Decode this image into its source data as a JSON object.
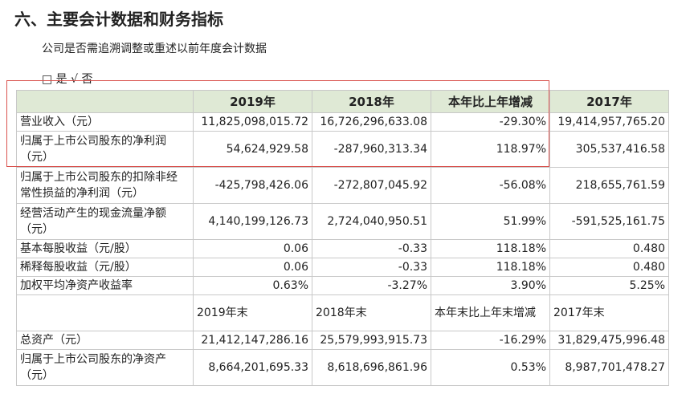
{
  "header": {
    "title": "六、主要会计数据和财务指标"
  },
  "subtitle": "公司是否需追溯调整或重述以前年度会计数据",
  "option": "□ 是 √ 否",
  "table": {
    "header": [
      "",
      "2019年",
      "2018年",
      "本年比上年增减",
      "2017年"
    ],
    "rows": [
      [
        "营业收入（元）",
        "11,825,098,015.72",
        "16,726,296,633.08",
        "-29.30%",
        "19,414,957,765.20"
      ],
      [
        "归属于上市公司股东的净利润（元）",
        "54,624,929.58",
        "-287,960,313.34",
        "118.97%",
        "305,537,416.58"
      ],
      [
        "归属于上市公司股东的扣除非经 常性损益的净利润（元）",
        "-425,798,426.06",
        "-272,807,045.92",
        "-56.08%",
        "218,655,761.59"
      ],
      [
        "经营活动产生的现金流量净额（元）",
        "4,140,199,126.73",
        "2,724,040,950.51",
        "51.99%",
        "-591,525,161.75"
      ],
      [
        "基本每股收益（元/股）",
        "0.06",
        "-0.33",
        "118.18%",
        "0.480"
      ],
      [
        "稀释每股收益（元/股）",
        "0.06",
        "-0.33",
        "118.18%",
        "0.480"
      ],
      [
        "加权平均净资产收益率",
        "0.63%",
        "-3.27%",
        "3.90%",
        "5.25%"
      ]
    ],
    "header2": [
      "",
      "2019年末",
      "2018年末",
      "本年末比上年末增减",
      "2017年末"
    ],
    "rows2": [
      [
        "总资产（元）",
        "21,412,147,286.16",
        "25,579,993,915.73",
        "-16.29%",
        "31,829,475,996.48"
      ],
      [
        "归属于上市公司股东的净资产（元）",
        "8,664,201,695.33",
        "8,618,696,861.96",
        "0.53%",
        "8,987,701,478.27"
      ]
    ]
  }
}
